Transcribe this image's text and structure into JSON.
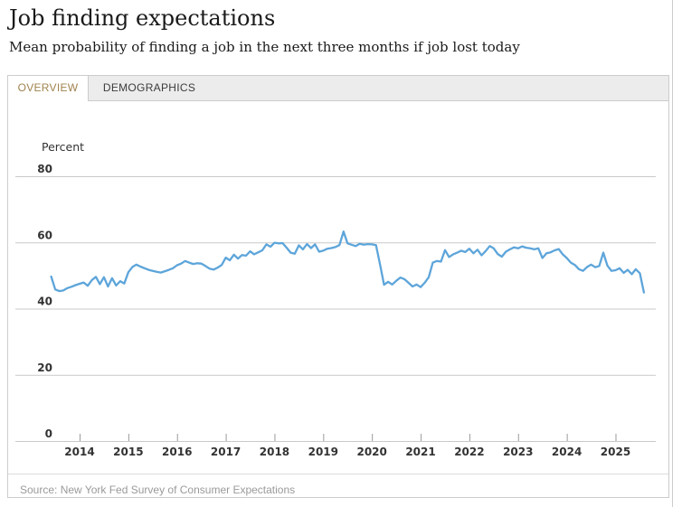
{
  "header": {
    "title": "Job finding expectations",
    "subtitle": "Mean probability of finding a job in the next three months if job lost today"
  },
  "tabs": [
    {
      "label": "OVERVIEW",
      "active": true
    },
    {
      "label": "DEMOGRAPHICS",
      "active": false
    }
  ],
  "footer": {
    "source": "Source: New York Fed Survey of Consumer Expectations"
  },
  "colors": {
    "line": "#5da5da",
    "grid": "#c9c9c9",
    "tick": "#9b9b9b",
    "axis_text": "#333333",
    "active_tab_text": "#a0834d",
    "tab_bar_bg": "#ececec",
    "border": "#cccccc",
    "source_text": "#9a9a9a"
  },
  "chart_data": {
    "type": "line",
    "title": "Job finding expectations",
    "y_axis_label": "Percent",
    "ylim": [
      0,
      80
    ],
    "y_ticks": [
      80,
      60,
      40,
      20,
      0
    ],
    "x_ticks_years": [
      2014,
      2015,
      2016,
      2017,
      2018,
      2019,
      2020,
      2021,
      2022,
      2023,
      2024,
      2025
    ],
    "frequency": "monthly",
    "start_month": "2013-06",
    "end_month": "2025-08",
    "grid": "horizontal",
    "legend": "none",
    "series": [
      {
        "name": "Mean probability of finding a job in the next three months (percent)",
        "values": [
          49.7,
          45.8,
          45.3,
          45.5,
          46.2,
          46.6,
          47.1,
          47.5,
          47.9,
          46.9,
          48.6,
          49.6,
          47.4,
          49.5,
          46.7,
          49.2,
          47.0,
          48.3,
          47.6,
          51.0,
          52.6,
          53.3,
          52.7,
          52.2,
          51.7,
          51.4,
          51.1,
          50.9,
          51.3,
          51.7,
          52.2,
          53.1,
          53.6,
          54.4,
          53.9,
          53.5,
          53.7,
          53.6,
          52.9,
          52.1,
          51.8,
          52.4,
          53.2,
          55.4,
          54.6,
          56.3,
          55.1,
          56.2,
          56.0,
          57.3,
          56.4,
          57.0,
          57.6,
          59.4,
          58.7,
          59.9,
          59.7,
          59.8,
          58.4,
          56.9,
          56.6,
          59.1,
          57.9,
          59.5,
          58.3,
          59.4,
          57.2,
          57.5,
          58.1,
          58.3,
          58.6,
          59.2,
          63.3,
          59.7,
          59.3,
          58.9,
          59.6,
          59.3,
          59.5,
          59.4,
          59.2,
          53.3,
          47.2,
          48.1,
          47.3,
          48.4,
          49.4,
          48.9,
          47.8,
          46.7,
          47.3,
          46.5,
          47.8,
          49.5,
          53.9,
          54.4,
          54.2,
          57.7,
          55.6,
          56.4,
          56.9,
          57.5,
          57.1,
          58.1,
          56.7,
          57.8,
          56.1,
          57.4,
          58.9,
          58.2,
          56.5,
          55.7,
          57.2,
          57.9,
          58.5,
          58.2,
          58.8,
          58.4,
          58.2,
          57.9,
          58.2,
          55.3,
          56.7,
          57.0,
          57.6,
          58.0,
          56.4,
          55.3,
          53.9,
          53.2,
          51.9,
          51.4,
          52.6,
          53.3,
          52.5,
          52.9,
          56.9,
          53.0,
          51.4,
          51.6,
          52.2,
          50.8,
          51.7,
          50.4,
          51.9,
          50.7,
          44.9
        ]
      }
    ]
  }
}
